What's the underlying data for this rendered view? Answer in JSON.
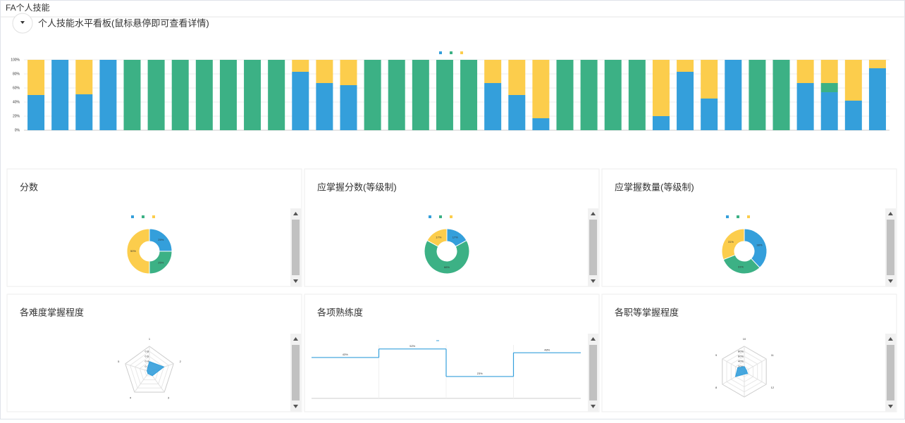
{
  "page_title": "FA个人技能",
  "chart_data": [
    {
      "type": "bar",
      "title": "个人技能水平看板(鼠标悬停即可查看详情)",
      "stacked": true,
      "categories": [
        null,
        null,
        null,
        null,
        null,
        null,
        null,
        null,
        null,
        null,
        null,
        null,
        null,
        null,
        null,
        null,
        null,
        null,
        null,
        null,
        null,
        null,
        null,
        null,
        null,
        null,
        null,
        null,
        null,
        null,
        null,
        null,
        null,
        null,
        null,
        null
      ],
      "series": [
        {
          "color": "#349fdb",
          "values": [
            50,
            100,
            51,
            100,
            0,
            0,
            0,
            0,
            0,
            0,
            0,
            83,
            67,
            64,
            0,
            0,
            0,
            0,
            0,
            67,
            50,
            17,
            0,
            0,
            0,
            0,
            20,
            83,
            45,
            100,
            0,
            0,
            67,
            54,
            42,
            88
          ]
        },
        {
          "color": "#3cb185",
          "values": [
            0,
            0,
            0,
            0,
            100,
            100,
            100,
            100,
            100,
            100,
            100,
            0,
            0,
            0,
            100,
            100,
            100,
            100,
            100,
            0,
            0,
            0,
            100,
            100,
            100,
            100,
            0,
            0,
            0,
            0,
            100,
            100,
            0,
            13,
            0,
            0
          ]
        },
        {
          "color": "#fccd4c",
          "values": [
            50,
            0,
            49,
            0,
            0,
            0,
            0,
            0,
            0,
            0,
            0,
            17,
            33,
            36,
            0,
            0,
            0,
            0,
            0,
            33,
            50,
            83,
            0,
            0,
            0,
            0,
            80,
            17,
            55,
            0,
            0,
            0,
            33,
            33,
            58,
            12
          ]
        }
      ],
      "ylim": [
        0,
        100
      ],
      "yticks": [
        {
          "value": 0,
          "label": "0%"
        },
        {
          "value": 20,
          "label": "20%"
        },
        {
          "value": 40,
          "label": "40%"
        },
        {
          "value": 60,
          "label": "60%"
        },
        {
          "value": 80,
          "label": "80%"
        },
        {
          "value": 100,
          "label": "100%"
        }
      ],
      "grid": true
    },
    {
      "type": "pie",
      "title": "分数",
      "donut": true,
      "values": [
        25,
        25,
        50
      ],
      "value_labels": [
        "25%",
        "25%",
        "50%"
      ],
      "colors": [
        "#349fdb",
        "#3cb185",
        "#fccd4c"
      ]
    },
    {
      "type": "pie",
      "title": "应掌握分数(等级制)",
      "donut": true,
      "values": [
        17,
        66,
        17
      ],
      "value_labels": [
        "17%",
        "66%",
        "17%"
      ],
      "colors": [
        "#349fdb",
        "#3cb185",
        "#fccd4c"
      ]
    },
    {
      "type": "pie",
      "title": "应掌握数量(等级制)",
      "donut": true,
      "values": [
        38,
        31,
        31
      ],
      "value_labels": [
        "38%",
        "31%",
        "31%"
      ],
      "colors": [
        "#349fdb",
        "#3cb185",
        "#fccd4c"
      ]
    },
    {
      "type": "radar",
      "title": "各难度掌握程度",
      "categories": [
        "1",
        "2",
        "3",
        "4",
        "5"
      ],
      "values": [
        0.4,
        0.6,
        0.2,
        0.1,
        0.1
      ],
      "color": "#349fdb",
      "rlim": [
        0,
        1
      ],
      "rticks": [
        0,
        0.2,
        0.4,
        0.6,
        0.8
      ]
    },
    {
      "type": "line",
      "title": "各项熟练度",
      "step": true,
      "categories": [
        null,
        null,
        null,
        null
      ],
      "values": [
        43,
        52,
        23,
        48
      ],
      "value_labels": [
        "43%",
        "52%",
        "23%",
        "48%"
      ],
      "color": "#349fdb",
      "ylim": [
        0,
        60
      ]
    },
    {
      "type": "radar",
      "title": "各职等掌握程度",
      "categories": [
        "10",
        "11",
        "12",
        null,
        "8",
        "9"
      ],
      "values": [
        20,
        10,
        15,
        10,
        40,
        30
      ],
      "color": "#349fdb",
      "rlim": [
        0,
        100
      ],
      "rticks": [
        {
          "value": 20,
          "label": "20%"
        },
        {
          "value": 40,
          "label": "40%"
        },
        {
          "value": 60,
          "label": "60%"
        },
        {
          "value": 80,
          "label": "80%"
        }
      ]
    }
  ]
}
